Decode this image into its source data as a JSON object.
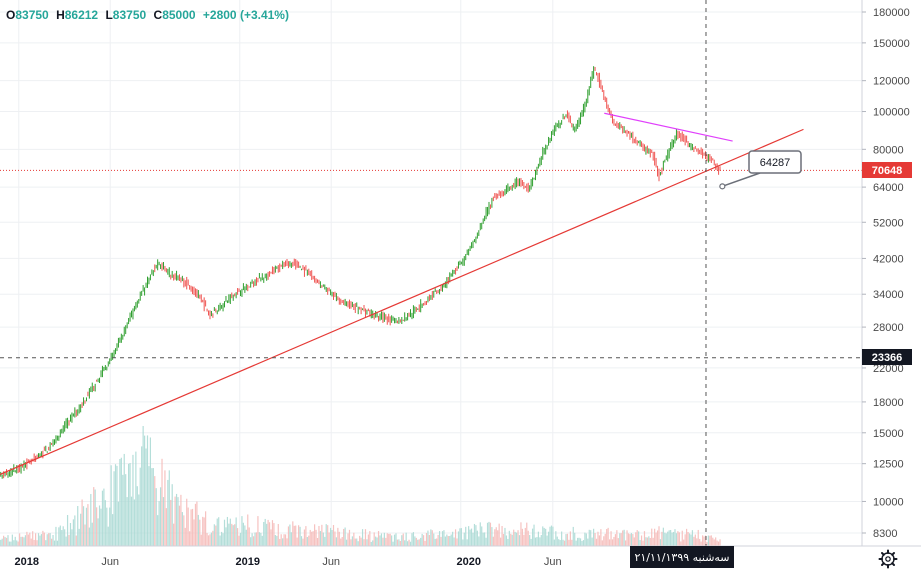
{
  "legend": {
    "open_label": "O",
    "open": "83750",
    "high_label": "H",
    "high": "86212",
    "low_label": "L",
    "low": "83750",
    "close_label": "C",
    "close": "85000",
    "change": "+2800 (+3.41%)"
  },
  "price_tags": {
    "current": "70648",
    "crosshair": "23366",
    "callout": "64287"
  },
  "crosshair_date": "سه‌شنبه ۲۱/۱۱/۱۳۹۹",
  "settings_icon": "gear-icon",
  "colors": {
    "up": "#26a69a",
    "down": "#ef5350",
    "candle": "#2e9e2e",
    "trendline": "#e53935",
    "resistance": "#e040fb",
    "current_tag": "#e53935",
    "crosshair_tag": "#131722"
  },
  "chart_data": {
    "type": "candlestick",
    "y_scale": "log",
    "ylim": [
      7500,
      190000
    ],
    "y_ticks": [
      180000,
      150000,
      120000,
      100000,
      80000,
      64000,
      52000,
      42000,
      34000,
      28000,
      22000,
      18000,
      15000,
      12500,
      10000,
      8300
    ],
    "x_ticks": [
      "2018",
      "Jun",
      "2019",
      "Jun",
      "2020",
      "Jun"
    ],
    "x_range": [
      "2018-01",
      "2021-06"
    ],
    "price_path": [
      [
        "2017-11-01",
        11000
      ],
      [
        "2017-12-15",
        11800
      ],
      [
        "2018-01-20",
        12600
      ],
      [
        "2018-02-20",
        13600
      ],
      [
        "2018-03-10",
        14800
      ],
      [
        "2018-04-05",
        16800
      ],
      [
        "2018-04-25",
        18500
      ],
      [
        "2018-05-15",
        20800
      ],
      [
        "2018-06-05",
        23300
      ],
      [
        "2018-06-25",
        27000
      ],
      [
        "2018-07-15",
        32000
      ],
      [
        "2018-08-05",
        37000
      ],
      [
        "2018-08-20",
        41000
      ],
      [
        "2018-09-10",
        38500
      ],
      [
        "2018-10-05",
        36500
      ],
      [
        "2018-10-25",
        34000
      ],
      [
        "2018-11-15",
        30000
      ],
      [
        "2018-12-05",
        32000
      ],
      [
        "2018-12-25",
        34000
      ],
      [
        "2019-01-20",
        36000
      ],
      [
        "2019-02-15",
        38000
      ],
      [
        "2019-03-10",
        40000
      ],
      [
        "2019-04-01",
        41000
      ],
      [
        "2019-04-25",
        38500
      ],
      [
        "2019-05-20",
        35500
      ],
      [
        "2019-06-15",
        33000
      ],
      [
        "2019-07-10",
        31500
      ],
      [
        "2019-08-05",
        30500
      ],
      [
        "2019-09-01",
        29500
      ],
      [
        "2019-09-25",
        29000
      ],
      [
        "2019-10-20",
        31000
      ],
      [
        "2019-11-15",
        33500
      ],
      [
        "2019-12-10",
        36500
      ],
      [
        "2020-01-10",
        42000
      ],
      [
        "2020-02-01",
        49000
      ],
      [
        "2020-02-25",
        60000
      ],
      [
        "2020-03-15",
        62000
      ],
      [
        "2020-04-05",
        66000
      ],
      [
        "2020-04-25",
        63000
      ],
      [
        "2020-05-20",
        80000
      ],
      [
        "2020-06-10",
        92000
      ],
      [
        "2020-06-25",
        98000
      ],
      [
        "2020-07-10",
        90000
      ],
      [
        "2020-07-30",
        108000
      ],
      [
        "2020-08-10",
        130000
      ],
      [
        "2020-08-25",
        112000
      ],
      [
        "2020-09-10",
        95000
      ],
      [
        "2020-10-05",
        88000
      ],
      [
        "2020-10-25",
        82000
      ],
      [
        "2020-11-15",
        78000
      ],
      [
        "2020-11-25",
        68000
      ],
      [
        "2020-12-10",
        78000
      ],
      [
        "2020-12-25",
        88000
      ],
      [
        "2021-01-15",
        82000
      ],
      [
        "2021-02-05",
        78000
      ],
      [
        "2021-02-20",
        75000
      ],
      [
        "2021-03-05",
        70648
      ]
    ],
    "volume_profile": [
      [
        "2017-11-01",
        0.05
      ],
      [
        "2018-03-01",
        0.1
      ],
      [
        "2018-06-01",
        0.45
      ],
      [
        "2018-07-15",
        0.75
      ],
      [
        "2018-08-20",
        0.55
      ],
      [
        "2018-10-01",
        0.3
      ],
      [
        "2018-12-01",
        0.2
      ],
      [
        "2019-04-01",
        0.15
      ],
      [
        "2019-09-01",
        0.08
      ],
      [
        "2019-12-01",
        0.1
      ],
      [
        "2020-03-01",
        0.15
      ],
      [
        "2020-06-01",
        0.12
      ],
      [
        "2020-08-15",
        0.1
      ],
      [
        "2020-11-01",
        0.12
      ],
      [
        "2021-03-05",
        0.08
      ]
    ],
    "lines": [
      {
        "kind": "trendline",
        "from": [
          "2017-11-01",
          11200
        ],
        "to": [
          "2021-07-20",
          90000
        ]
      },
      {
        "kind": "resistance",
        "from": [
          "2020-08-25",
          99000
        ],
        "to": [
          "2021-03-25",
          84000
        ]
      },
      {
        "kind": "current_price",
        "value": 70648
      },
      {
        "kind": "crosshair_h",
        "value": 23366
      },
      {
        "kind": "crosshair_v",
        "date": "2021-02-09"
      }
    ],
    "callout": {
      "value": 64287,
      "anchor": [
        "2021-03-08",
        64287
      ]
    }
  }
}
